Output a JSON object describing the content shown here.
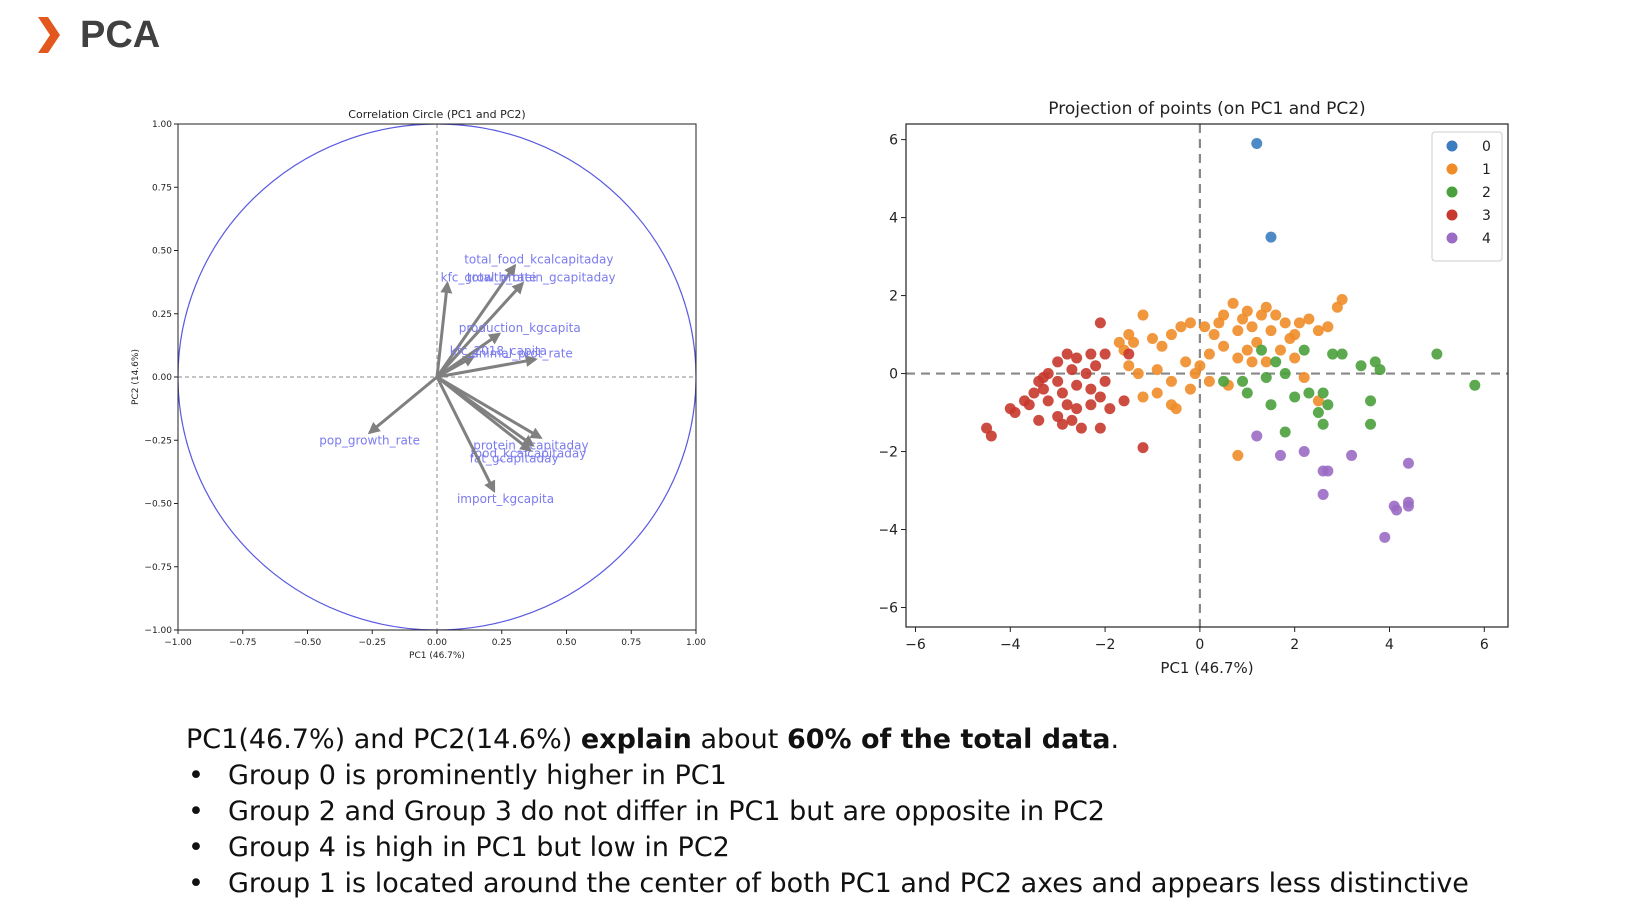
{
  "slide": {
    "title": "PCA"
  },
  "summary": {
    "intro_part1": "PC1(46.7%) and PC2(14.6%) ",
    "intro_bold1": "explain",
    "intro_part2": " about ",
    "intro_bold2": "60% of the total data",
    "intro_part3": ".",
    "bullets": [
      "Group 0 is prominently higher in PC1",
      "Group 2 and Group 3 do not differ in PC1 but are opposite in PC2",
      "Group 4 is high in PC1 but low in PC2",
      "Group 1 is located around the center of both PC1 and PC2 axes and appears less distinctive"
    ]
  },
  "chart_data": [
    {
      "type": "correlation_circle",
      "title": "Correlation Circle (PC1 and PC2)",
      "xlabel": "PC1 (46.7%)",
      "ylabel": "PC2 (14.6%)",
      "xlim": [
        -1.0,
        1.0
      ],
      "ylim": [
        -1.0,
        1.0
      ],
      "xticks": [
        "−1.00",
        "−0.75",
        "−0.50",
        "−0.25",
        "0.00",
        "0.25",
        "0.50",
        "0.75",
        "1.00"
      ],
      "yticks": [
        "−1.00",
        "−0.75",
        "−0.50",
        "−0.25",
        "0.00",
        "0.25",
        "0.50",
        "0.75",
        "1.00"
      ],
      "circle_color": "#5a5ae0",
      "arrow_color": "#808080",
      "label_color": "#7b7bef",
      "vectors": [
        {
          "name": "total_food_kcalcapitaday",
          "x": 0.3,
          "y": 0.44
        },
        {
          "name": "total_protein_gcapitaday",
          "x": 0.33,
          "y": 0.37
        },
        {
          "name": "kfc_growth_rate",
          "x": 0.04,
          "y": 0.37
        },
        {
          "name": "production_kgcapita",
          "x": 0.24,
          "y": 0.17
        },
        {
          "name": "kfc_2018_capita",
          "x": 0.14,
          "y": 0.08
        },
        {
          "name": "animal_prot_rate",
          "x": 0.38,
          "y": 0.07
        },
        {
          "name": "pop_growth_rate",
          "x": -0.26,
          "y": -0.22
        },
        {
          "name": "protein_gcapitaday",
          "x": 0.4,
          "y": -0.24
        },
        {
          "name": "food_kcalcapitaday",
          "x": 0.37,
          "y": -0.27
        },
        {
          "name": "fat_gcapitaday",
          "x": 0.36,
          "y": -0.29
        },
        {
          "name": "import_kgcapita",
          "x": 0.22,
          "y": -0.45
        }
      ]
    },
    {
      "type": "scatter",
      "title": "Projection of points (on PC1 and PC2)",
      "xlabel": "PC1 (46.7%)",
      "ylabel": "PC2 (14.6%)",
      "xlim": [
        -6.2,
        6.5
      ],
      "ylim": [
        -6.5,
        6.4
      ],
      "xticks": [
        "−6",
        "−4",
        "−2",
        "0",
        "2",
        "4",
        "6"
      ],
      "yticks": [
        "−6",
        "−4",
        "−2",
        "0",
        "2",
        "4",
        "6"
      ],
      "legend_position": "top-right",
      "series": [
        {
          "name": "0",
          "color": "#3b7dbf",
          "points": [
            [
              1.2,
              5.9
            ],
            [
              1.5,
              3.5
            ]
          ]
        },
        {
          "name": "1",
          "color": "#f08c28",
          "points": [
            [
              -1.5,
              1.0
            ],
            [
              -1.2,
              1.5
            ],
            [
              -1.4,
              0.8
            ],
            [
              -1.6,
              0.6
            ],
            [
              -1.0,
              0.9
            ],
            [
              -0.8,
              0.7
            ],
            [
              -0.6,
              1.0
            ],
            [
              -0.4,
              1.2
            ],
            [
              -0.2,
              1.3
            ],
            [
              0.1,
              1.2
            ],
            [
              0.3,
              1.0
            ],
            [
              0.5,
              1.5
            ],
            [
              0.7,
              1.8
            ],
            [
              0.8,
              1.1
            ],
            [
              0.9,
              1.4
            ],
            [
              1.0,
              1.6
            ],
            [
              1.1,
              1.2
            ],
            [
              1.3,
              1.5
            ],
            [
              1.4,
              1.7
            ],
            [
              1.5,
              1.1
            ],
            [
              1.6,
              1.5
            ],
            [
              1.8,
              1.3
            ],
            [
              2.0,
              1.0
            ],
            [
              2.1,
              1.3
            ],
            [
              2.3,
              1.4
            ],
            [
              2.5,
              1.1
            ],
            [
              2.7,
              1.2
            ],
            [
              2.9,
              1.7
            ],
            [
              3.0,
              1.9
            ],
            [
              -1.5,
              0.2
            ],
            [
              -1.3,
              0.0
            ],
            [
              -0.9,
              0.1
            ],
            [
              -0.6,
              -0.2
            ],
            [
              -0.3,
              0.3
            ],
            [
              0.0,
              0.2
            ],
            [
              0.2,
              0.5
            ],
            [
              0.5,
              0.7
            ],
            [
              0.8,
              0.4
            ],
            [
              1.0,
              0.6
            ],
            [
              1.2,
              0.8
            ],
            [
              1.4,
              0.3
            ],
            [
              1.7,
              0.6
            ],
            [
              2.0,
              0.4
            ],
            [
              -1.2,
              -0.6
            ],
            [
              -0.9,
              -0.5
            ],
            [
              -0.6,
              -0.8
            ],
            [
              -0.5,
              -0.9
            ],
            [
              -0.2,
              -0.4
            ],
            [
              0.2,
              -0.2
            ],
            [
              0.6,
              -0.3
            ],
            [
              0.8,
              -2.1
            ],
            [
              2.2,
              -0.1
            ],
            [
              2.5,
              -0.7
            ],
            [
              1.1,
              0.3
            ],
            [
              -0.1,
              0.0
            ],
            [
              -1.7,
              0.8
            ],
            [
              0.4,
              1.3
            ],
            [
              1.9,
              0.9
            ]
          ]
        },
        {
          "name": "2",
          "color": "#4aa03c",
          "points": [
            [
              1.3,
              0.6
            ],
            [
              1.6,
              0.3
            ],
            [
              2.2,
              0.6
            ],
            [
              2.8,
              0.5
            ],
            [
              3.0,
              0.5
            ],
            [
              3.4,
              0.2
            ],
            [
              3.7,
              0.3
            ],
            [
              3.8,
              0.1
            ],
            [
              5.0,
              0.5
            ],
            [
              5.8,
              -0.3
            ],
            [
              0.5,
              -0.2
            ],
            [
              0.9,
              -0.2
            ],
            [
              1.0,
              -0.5
            ],
            [
              1.4,
              -0.1
            ],
            [
              1.8,
              0.0
            ],
            [
              2.0,
              -0.6
            ],
            [
              2.3,
              -0.5
            ],
            [
              2.5,
              -1.0
            ],
            [
              2.6,
              -1.3
            ],
            [
              2.7,
              -0.8
            ],
            [
              3.6,
              -0.7
            ],
            [
              3.6,
              -1.3
            ],
            [
              1.5,
              -0.8
            ],
            [
              1.8,
              -1.5
            ],
            [
              2.6,
              -0.5
            ]
          ]
        },
        {
          "name": "3",
          "color": "#c8382e",
          "points": [
            [
              -2.1,
              1.3
            ],
            [
              -2.3,
              0.5
            ],
            [
              -2.6,
              0.4
            ],
            [
              -2.8,
              0.5
            ],
            [
              -3.0,
              0.3
            ],
            [
              -2.7,
              0.1
            ],
            [
              -2.2,
              0.2
            ],
            [
              -2.0,
              0.5
            ],
            [
              -1.5,
              0.5
            ],
            [
              -3.2,
              0.0
            ],
            [
              -3.4,
              -0.2
            ],
            [
              -3.5,
              -0.5
            ],
            [
              -3.3,
              -0.4
            ],
            [
              -3.0,
              -0.2
            ],
            [
              -2.9,
              -0.5
            ],
            [
              -2.6,
              -0.3
            ],
            [
              -2.3,
              -0.4
            ],
            [
              -2.1,
              -0.6
            ],
            [
              -2.0,
              -0.2
            ],
            [
              -3.7,
              -0.7
            ],
            [
              -3.6,
              -0.8
            ],
            [
              -3.2,
              -0.7
            ],
            [
              -2.8,
              -0.8
            ],
            [
              -2.6,
              -0.9
            ],
            [
              -2.3,
              -0.8
            ],
            [
              -1.9,
              -0.9
            ],
            [
              -3.9,
              -1.0
            ],
            [
              -3.4,
              -1.2
            ],
            [
              -3.0,
              -1.1
            ],
            [
              -2.7,
              -1.2
            ],
            [
              -2.5,
              -1.4
            ],
            [
              -2.1,
              -1.4
            ],
            [
              -4.0,
              -0.9
            ],
            [
              -4.5,
              -1.4
            ],
            [
              -4.4,
              -1.6
            ],
            [
              -1.2,
              -1.9
            ],
            [
              -2.9,
              -1.3
            ],
            [
              -3.3,
              -0.1
            ],
            [
              -2.4,
              0.0
            ],
            [
              -1.6,
              -0.7
            ]
          ]
        },
        {
          "name": "4",
          "color": "#9b6cc4",
          "points": [
            [
              1.2,
              -1.6
            ],
            [
              1.7,
              -2.1
            ],
            [
              2.6,
              -2.5
            ],
            [
              2.7,
              -2.5
            ],
            [
              3.2,
              -2.1
            ],
            [
              2.6,
              -3.1
            ],
            [
              4.4,
              -2.3
            ],
            [
              4.1,
              -3.4
            ],
            [
              4.15,
              -3.5
            ],
            [
              4.4,
              -3.3
            ],
            [
              4.4,
              -3.4
            ],
            [
              3.9,
              -4.2
            ],
            [
              2.2,
              -2.0
            ]
          ]
        }
      ]
    }
  ]
}
